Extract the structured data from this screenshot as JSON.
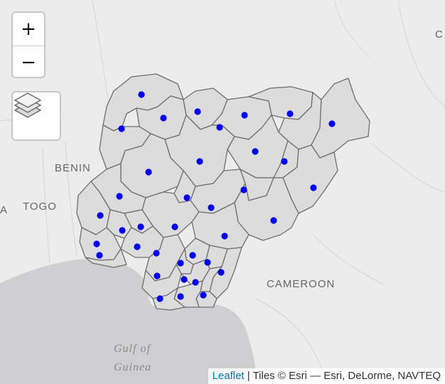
{
  "map": {
    "countries": [
      "BENIN",
      "TOGO",
      "A",
      "CAMEROON",
      "C"
    ],
    "water": [
      "Gulf of",
      "Guinea"
    ],
    "colors": {
      "land": "#f0f0f0",
      "sea": "#cfcfd2",
      "state_fill": "#dcdcdc",
      "state_stroke": "#6e6e6e",
      "marker": "#0000ee"
    },
    "marker_count": 38
  },
  "controls": {
    "zoom_in": "+",
    "zoom_out": "−",
    "layers_icon": "layers-icon"
  },
  "attribution": {
    "link": "Leaflet",
    "text": " | Tiles © Esri — Esri, DeLorme, NAVTEQ"
  }
}
